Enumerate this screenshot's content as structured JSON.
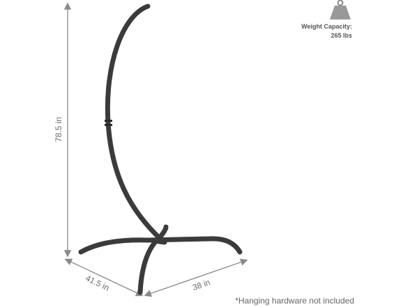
{
  "dimensions": {
    "height": "78.5 in",
    "depth": "41.5 in",
    "width": "38 in"
  },
  "weight_capacity": {
    "label": "Weight Capacity:",
    "value": "265 lbs"
  },
  "note": "*Hanging hardware not included"
}
